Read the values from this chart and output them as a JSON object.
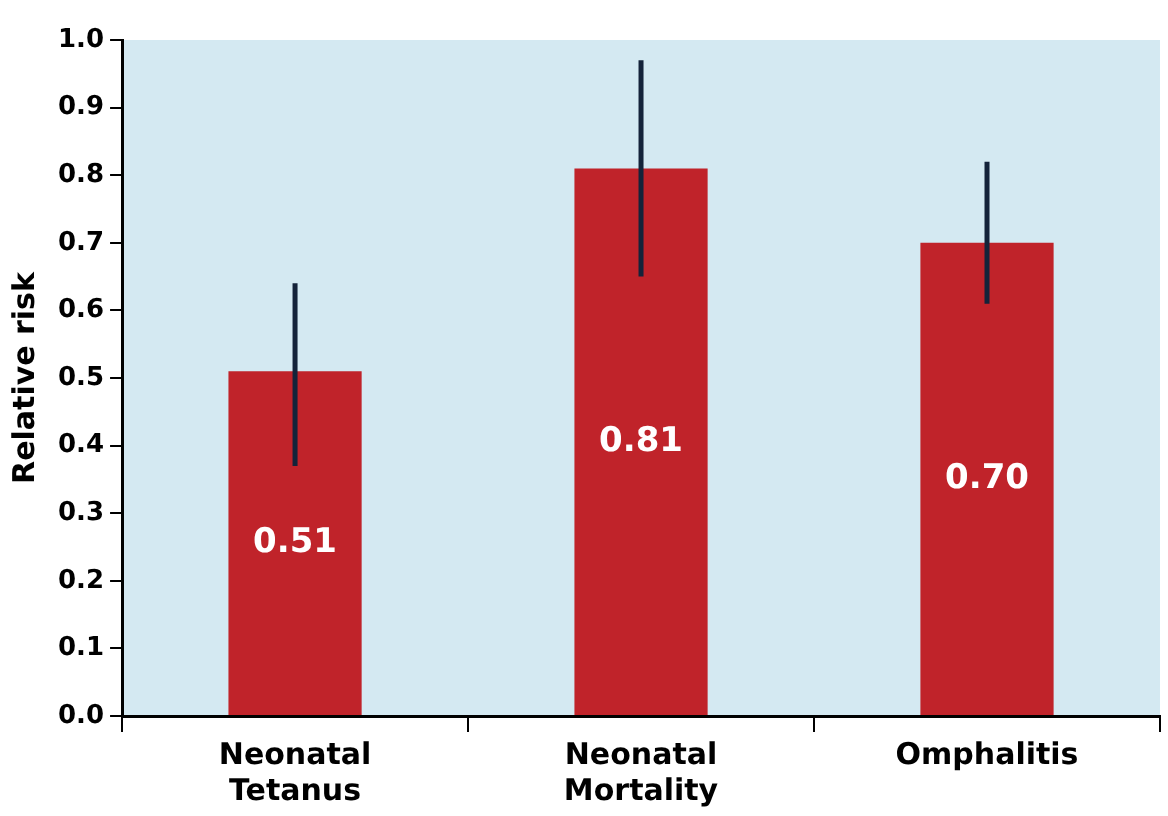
{
  "chart_data": {
    "type": "bar",
    "ylabel": "Relative risk",
    "categories": [
      "Neonatal Tetanus",
      "Neonatal Mortality",
      "Omphalitis"
    ],
    "values": [
      0.51,
      0.81,
      0.7
    ],
    "value_labels": [
      "0.51",
      "0.81",
      "0.70"
    ],
    "errors": [
      [
        0.37,
        0.64
      ],
      [
        0.65,
        0.97
      ],
      [
        0.61,
        0.82
      ]
    ],
    "color": "#c0232a",
    "ylim": [
      0,
      1
    ],
    "yticks": [
      {
        "value": 0,
        "label": "0.0"
      },
      {
        "value": 0.1,
        "label": "0.1"
      },
      {
        "value": 0.2,
        "label": "0.2"
      },
      {
        "value": 0.3,
        "label": "0.3"
      },
      {
        "value": 0.4,
        "label": "0.4"
      },
      {
        "value": 0.5,
        "label": "0.5"
      },
      {
        "value": 0.6,
        "label": "0.6"
      },
      {
        "value": 0.7,
        "label": "0.7"
      },
      {
        "value": 0.8,
        "label": "0.8"
      },
      {
        "value": 0.9,
        "label": "0.9"
      },
      {
        "value": 1,
        "label": "1.0"
      }
    ],
    "grid": false,
    "legend": false
  }
}
